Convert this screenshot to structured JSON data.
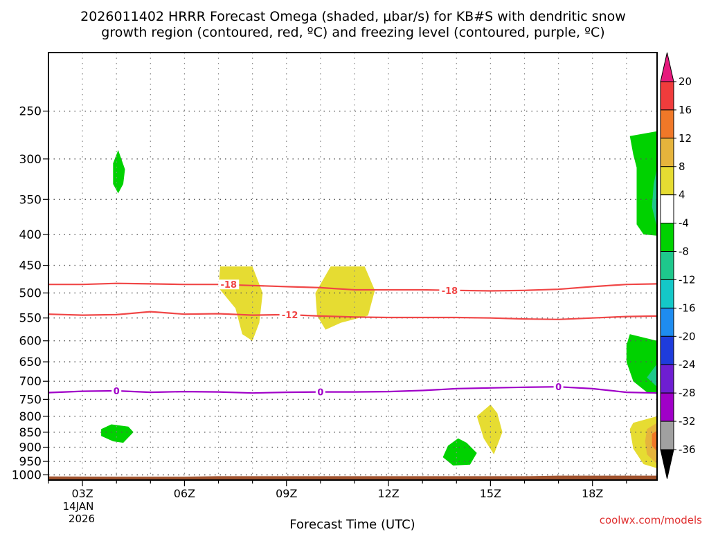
{
  "chart_data": {
    "type": "contour",
    "title_line1": "2026011402 HRRR Forecast Omega (shaded, μbar/s) for KB#S with dendritic snow",
    "title_line2": "growth region (contoured, red, ºC) and freezing level (contoured, purple, ºC)",
    "xlabel": "Forecast Time (UTC)",
    "watermark": "coolwx.com/models",
    "x_ticks": [
      {
        "hour": 3,
        "label": "03Z"
      },
      {
        "hour": 6,
        "label": "06Z"
      },
      {
        "hour": 9,
        "label": "09Z"
      },
      {
        "hour": 12,
        "label": "12Z"
      },
      {
        "hour": 15,
        "label": "15Z"
      },
      {
        "hour": 18,
        "label": "18Z"
      }
    ],
    "x_date_line1": "14JAN",
    "x_date_line2": "2026",
    "x_range": [
      2,
      19.9
    ],
    "y_ticks": [
      250,
      300,
      350,
      400,
      450,
      500,
      550,
      600,
      650,
      700,
      750,
      800,
      850,
      900,
      950,
      1000
    ],
    "y_range_hpa": [
      200,
      1020
    ],
    "y_scale": "log",
    "colorbar": {
      "levels": [
        "20",
        "16",
        "12",
        "8",
        "4",
        "-4",
        "-8",
        "-12",
        "-16",
        "-20",
        "-24",
        "-28",
        "-32",
        "-36"
      ],
      "bins": [
        {
          "from": 16,
          "to": 20,
          "color": "#f03c3c"
        },
        {
          "from": 12,
          "to": 16,
          "color": "#f07828"
        },
        {
          "from": 8,
          "to": 12,
          "color": "#e6b43c"
        },
        {
          "from": 4,
          "to": 8,
          "color": "#e6dc32"
        },
        {
          "from": -4,
          "to": 4,
          "color": "#ffffff"
        },
        {
          "from": -8,
          "to": -4,
          "color": "#00d200"
        },
        {
          "from": -12,
          "to": -8,
          "color": "#1ec88c"
        },
        {
          "from": -16,
          "to": -12,
          "color": "#14c8c8"
        },
        {
          "from": -20,
          "to": -16,
          "color": "#1e8cf0"
        },
        {
          "from": -24,
          "to": -20,
          "color": "#1e3cdc"
        },
        {
          "from": -28,
          "to": -24,
          "color": "#6e1ed2"
        },
        {
          "from": -32,
          "to": -28,
          "color": "#a000c8"
        },
        {
          "from": -36,
          "to": -32,
          "color": "#a0a0a0"
        }
      ],
      "top_arrow_color": "#e6197d",
      "bottom_arrow_color": "#000000"
    },
    "contours": [
      {
        "name": "-18",
        "color": "#f04646",
        "points": [
          [
            2,
            484
          ],
          [
            3,
            484
          ],
          [
            4,
            482
          ],
          [
            5,
            483
          ],
          [
            6,
            484
          ],
          [
            7,
            484
          ],
          [
            8,
            486
          ],
          [
            9,
            488
          ],
          [
            10,
            490
          ],
          [
            11,
            494
          ],
          [
            12,
            494
          ],
          [
            13,
            494
          ],
          [
            14,
            495
          ],
          [
            15,
            496
          ],
          [
            16,
            495
          ],
          [
            17,
            493
          ],
          [
            18,
            488
          ],
          [
            19,
            484
          ],
          [
            19.9,
            483
          ]
        ],
        "labels": [
          [
            7.3,
            484,
            "-18"
          ],
          [
            13.8,
            495,
            "-18"
          ]
        ]
      },
      {
        "name": "-12",
        "color": "#f04646",
        "points": [
          [
            2,
            542
          ],
          [
            3,
            544
          ],
          [
            4,
            543
          ],
          [
            5,
            537
          ],
          [
            6,
            542
          ],
          [
            7,
            541
          ],
          [
            8,
            544
          ],
          [
            9,
            543
          ],
          [
            10,
            546
          ],
          [
            11,
            548
          ],
          [
            12,
            549
          ],
          [
            13,
            549
          ],
          [
            14,
            549
          ],
          [
            15,
            550
          ],
          [
            16,
            552
          ],
          [
            17,
            553
          ],
          [
            18,
            550
          ],
          [
            19,
            547
          ],
          [
            19.9,
            546
          ]
        ],
        "labels": [
          [
            9.1,
            543,
            "-12"
          ]
        ]
      },
      {
        "name": "0",
        "color": "#a000c8",
        "points": [
          [
            2,
            731
          ],
          [
            3,
            727
          ],
          [
            4,
            726
          ],
          [
            5,
            730
          ],
          [
            6,
            728
          ],
          [
            7,
            729
          ],
          [
            8,
            732
          ],
          [
            9,
            730
          ],
          [
            10,
            729
          ],
          [
            11,
            729
          ],
          [
            12,
            728
          ],
          [
            13,
            725
          ],
          [
            14,
            720
          ],
          [
            15,
            718
          ],
          [
            16,
            716
          ],
          [
            17,
            715
          ],
          [
            18,
            720
          ],
          [
            19,
            730
          ],
          [
            19.9,
            732
          ]
        ],
        "labels": [
          [
            4,
            726,
            "0"
          ],
          [
            10,
            729,
            "0"
          ],
          [
            17,
            715,
            "0"
          ]
        ]
      }
    ],
    "omega_regions": [
      {
        "value": -6,
        "color": "#00d200",
        "points": [
          [
            4.05,
            290
          ],
          [
            4.25,
            312
          ],
          [
            4.2,
            330
          ],
          [
            4.05,
            342
          ],
          [
            3.9,
            330
          ],
          [
            3.9,
            305
          ]
        ]
      },
      {
        "value": 6,
        "color": "#e6dc32",
        "points": [
          [
            7.05,
            452
          ],
          [
            8.0,
            452
          ],
          [
            8.3,
            500
          ],
          [
            8.2,
            560
          ],
          [
            8.0,
            600
          ],
          [
            7.7,
            585
          ],
          [
            7.5,
            530
          ],
          [
            7.0,
            490
          ]
        ]
      },
      {
        "value": 6,
        "color": "#e6dc32",
        "points": [
          [
            10.3,
            452
          ],
          [
            11.3,
            452
          ],
          [
            11.6,
            495
          ],
          [
            11.4,
            545
          ],
          [
            10.6,
            560
          ],
          [
            10.15,
            575
          ],
          [
            9.9,
            545
          ],
          [
            9.85,
            500
          ]
        ]
      },
      {
        "value": 6,
        "color": "#e6dc32",
        "points": [
          [
            15.0,
            765
          ],
          [
            15.2,
            790
          ],
          [
            15.35,
            850
          ],
          [
            15.1,
            925
          ],
          [
            14.8,
            870
          ],
          [
            14.6,
            800
          ]
        ]
      },
      {
        "value": -6,
        "color": "#00d200",
        "points": [
          [
            3.55,
            840
          ],
          [
            3.85,
            825
          ],
          [
            4.35,
            832
          ],
          [
            4.5,
            850
          ],
          [
            4.2,
            885
          ],
          [
            3.9,
            880
          ],
          [
            3.55,
            862
          ]
        ]
      },
      {
        "value": -6,
        "color": "#00d200",
        "points": [
          [
            14.3,
            885
          ],
          [
            14.6,
            920
          ],
          [
            14.4,
            962
          ],
          [
            13.9,
            965
          ],
          [
            13.6,
            935
          ],
          [
            13.75,
            895
          ],
          [
            14.05,
            870
          ]
        ]
      },
      {
        "value": -6,
        "color": "#00d200",
        "points": [
          [
            19.1,
            275
          ],
          [
            19.9,
            270
          ],
          [
            19.9,
            402
          ],
          [
            19.5,
            400
          ],
          [
            19.3,
            385
          ],
          [
            19.3,
            310
          ],
          [
            19.2,
            295
          ]
        ]
      },
      {
        "value": -10,
        "color": "#1ec88c",
        "points": [
          [
            19.9,
            310
          ],
          [
            19.9,
            390
          ],
          [
            19.75,
            360
          ],
          [
            19.8,
            330
          ]
        ]
      },
      {
        "value": -6,
        "color": "#00d200",
        "points": [
          [
            19.1,
            585
          ],
          [
            19.9,
            600
          ],
          [
            19.9,
            735
          ],
          [
            19.6,
            730
          ],
          [
            19.2,
            700
          ],
          [
            19.0,
            650
          ],
          [
            19.0,
            610
          ]
        ]
      },
      {
        "value": -10,
        "color": "#1ec88c",
        "points": [
          [
            19.9,
            655
          ],
          [
            19.9,
            715
          ],
          [
            19.6,
            690
          ]
        ]
      },
      {
        "value": 6,
        "color": "#e6dc32",
        "points": [
          [
            19.2,
            820
          ],
          [
            19.9,
            800
          ],
          [
            19.9,
            975
          ],
          [
            19.5,
            960
          ],
          [
            19.2,
            905
          ],
          [
            19.1,
            840
          ]
        ]
      },
      {
        "value": 10,
        "color": "#e6b43c",
        "points": [
          [
            19.6,
            840
          ],
          [
            19.9,
            820
          ],
          [
            19.9,
            960
          ],
          [
            19.6,
            925
          ],
          [
            19.55,
            880
          ]
        ]
      },
      {
        "value": 14,
        "color": "#f07828",
        "points": [
          [
            19.75,
            855
          ],
          [
            19.9,
            845
          ],
          [
            19.9,
            915
          ],
          [
            19.75,
            895
          ]
        ]
      }
    ],
    "terrain_color": "#a0522d"
  }
}
